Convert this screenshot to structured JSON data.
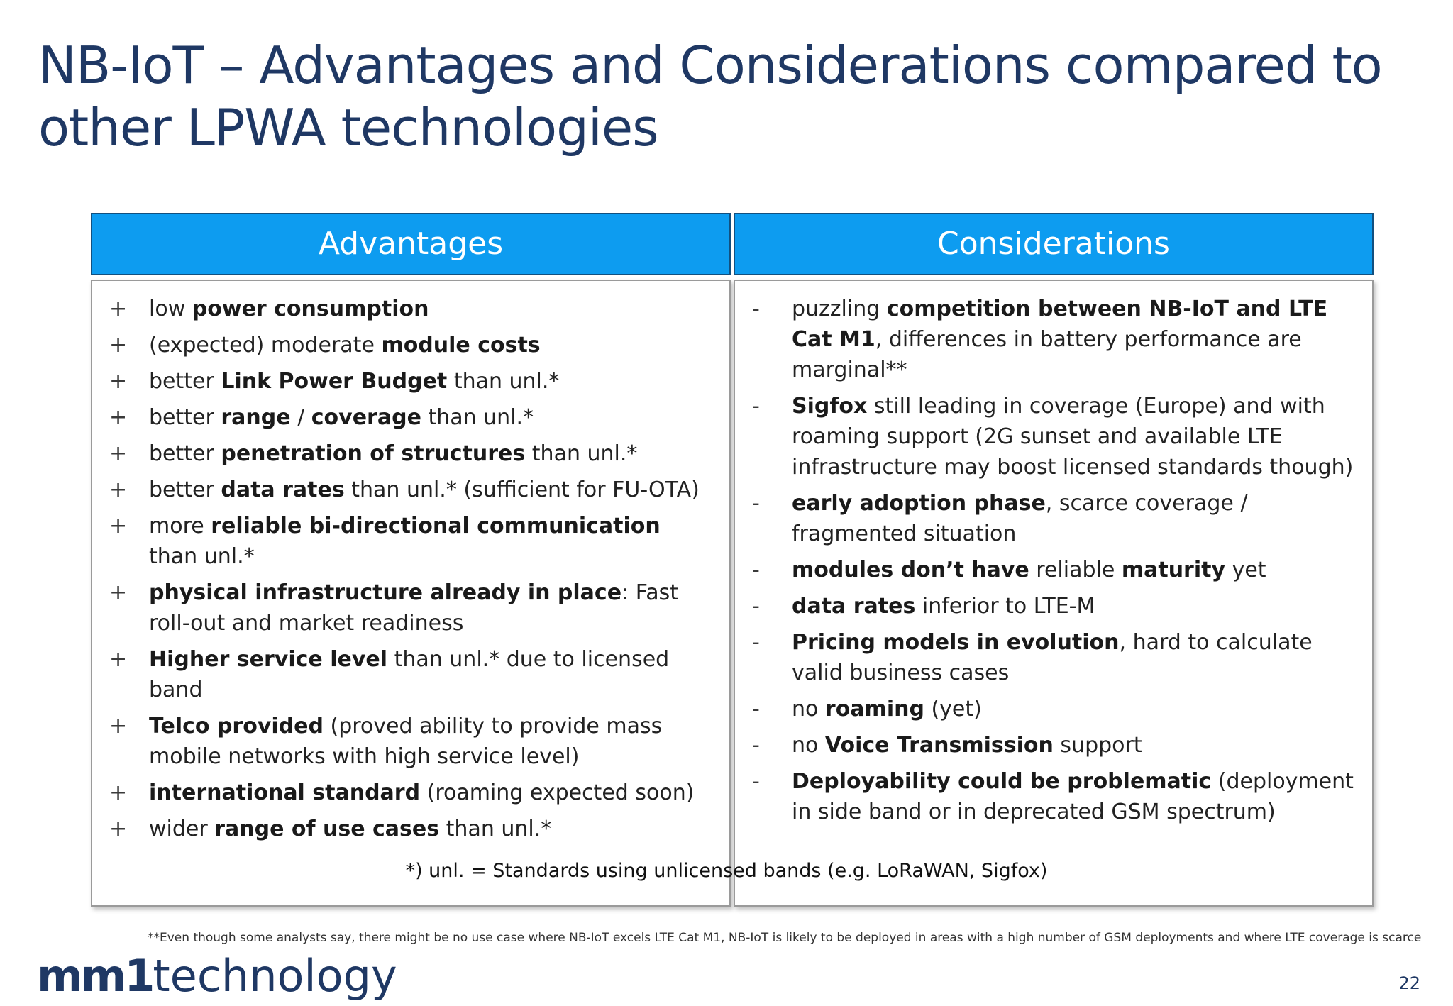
{
  "title": "NB-IoT – Advantages and Considerations compared to other LPWA technologies",
  "advantages": {
    "header": "Advantages",
    "marker": "+",
    "items": [
      [
        {
          "t": "low "
        },
        {
          "t": "power consumption",
          "b": true
        }
      ],
      [
        {
          "t": "(expected) moderate "
        },
        {
          "t": "module costs",
          "b": true
        }
      ],
      [
        {
          "t": "better "
        },
        {
          "t": "Link Power Budget",
          "b": true
        },
        {
          "t": " than unl.*"
        }
      ],
      [
        {
          "t": "better "
        },
        {
          "t": "range",
          "b": true
        },
        {
          "t": " / "
        },
        {
          "t": "coverage",
          "b": true
        },
        {
          "t": " than unl.*"
        }
      ],
      [
        {
          "t": "better "
        },
        {
          "t": "penetration of structures",
          "b": true
        },
        {
          "t": " than unl.*"
        }
      ],
      [
        {
          "t": "better "
        },
        {
          "t": "data rates",
          "b": true
        },
        {
          "t": " than unl.* (sufficient for FU-OTA)"
        }
      ],
      [
        {
          "t": "more "
        },
        {
          "t": "reliable bi-directional communication",
          "b": true
        },
        {
          "t": " than unl.*"
        }
      ],
      [
        {
          "t": "physical infrastructure already in place",
          "b": true
        },
        {
          "t": ": Fast roll-out and market readiness"
        }
      ],
      [
        {
          "t": "Higher service level",
          "b": true
        },
        {
          "t": " than unl.* due to licensed band"
        }
      ],
      [
        {
          "t": "Telco provided",
          "b": true
        },
        {
          "t": " (proved ability to provide mass mobile networks with high service level)"
        }
      ],
      [
        {
          "t": "international standard",
          "b": true
        },
        {
          "t": " (roaming expected soon)"
        }
      ],
      [
        {
          "t": "wider "
        },
        {
          "t": "range of use cases",
          "b": true
        },
        {
          "t": " than unl.*"
        }
      ]
    ]
  },
  "considerations": {
    "header": "Considerations",
    "marker": "-",
    "items": [
      [
        {
          "t": "puzzling "
        },
        {
          "t": "competition between NB-IoT and LTE Cat M1",
          "b": true
        },
        {
          "t": ", differences in battery performance are marginal**"
        }
      ],
      [
        {
          "t": "Sigfox",
          "b": true
        },
        {
          "t": " still leading in coverage (Europe) and with roaming support (2G sunset and available LTE infrastructure may boost licensed standards though)"
        }
      ],
      [
        {
          "t": "early adoption phase",
          "b": true
        },
        {
          "t": ", scarce coverage / fragmented situation"
        }
      ],
      [
        {
          "t": "modules don’t have",
          "b": true
        },
        {
          "t": " reliable "
        },
        {
          "t": "maturity",
          "b": true
        },
        {
          "t": " yet"
        }
      ],
      [
        {
          "t": "data rates",
          "b": true
        },
        {
          "t": " inferior to LTE-M"
        }
      ],
      [
        {
          "t": "Pricing models in evolution",
          "b": true
        },
        {
          "t": ", hard to calculate valid business cases"
        }
      ],
      [
        {
          "t": "no "
        },
        {
          "t": "roaming",
          "b": true
        },
        {
          "t": " (yet)"
        }
      ],
      [
        {
          "t": "no "
        },
        {
          "t": "Voice Transmission",
          "b": true
        },
        {
          "t": " support"
        }
      ],
      [
        {
          "t": "Deployability could be problematic",
          "b": true
        },
        {
          "t": " (deployment in side band or in deprecated GSM spectrum)"
        }
      ]
    ]
  },
  "footnote_unl": "*) unl. = Standards using unlicensed bands (e.g. LoRaWAN, Sigfox)",
  "footnote_analysts": "**Even though some analysts say, there might be no use case where NB-IoT excels LTE Cat M1, NB-IoT is likely to be deployed in areas with a high number of GSM deployments and where LTE coverage is scarce",
  "logo": {
    "part1": "mm1",
    "part2": "technology"
  },
  "page_number": "22"
}
